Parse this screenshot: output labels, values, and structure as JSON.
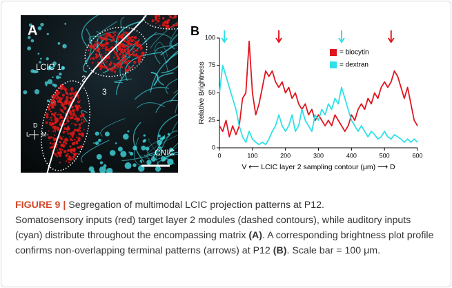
{
  "panel_a": {
    "label": "A",
    "texts": [
      "LCIC 1",
      "2",
      "3",
      "CNIC",
      "D",
      "L",
      "M"
    ]
  },
  "chart_data": {
    "type": "line",
    "panel_label": "B",
    "ylabel": "Relative Brightness",
    "xlabel": "V ⟵ LCIC layer 2 sampling contour (μm) ⟶ D",
    "x": [
      0,
      10,
      20,
      30,
      40,
      50,
      60,
      70,
      80,
      90,
      100,
      110,
      120,
      130,
      140,
      150,
      160,
      170,
      180,
      190,
      200,
      210,
      220,
      230,
      240,
      250,
      260,
      270,
      280,
      290,
      300,
      310,
      320,
      330,
      340,
      350,
      360,
      370,
      380,
      390,
      400,
      410,
      420,
      430,
      440,
      450,
      460,
      470,
      480,
      490,
      500,
      510,
      520,
      530,
      540,
      550,
      560,
      570,
      580,
      590,
      600
    ],
    "series": [
      {
        "name": "= biocytin",
        "color": "#e0161e",
        "values": [
          20,
          15,
          25,
          10,
          20,
          12,
          20,
          45,
          50,
          97,
          50,
          30,
          40,
          55,
          70,
          65,
          70,
          60,
          55,
          60,
          50,
          55,
          45,
          50,
          40,
          35,
          40,
          30,
          35,
          25,
          30,
          25,
          20,
          25,
          20,
          30,
          25,
          20,
          15,
          20,
          30,
          25,
          35,
          40,
          35,
          45,
          40,
          50,
          45,
          55,
          60,
          55,
          60,
          70,
          65,
          55,
          45,
          55,
          40,
          25,
          20
        ]
      },
      {
        "name": "= dextran",
        "color": "#2fe0e8",
        "values": [
          50,
          75,
          65,
          55,
          45,
          35,
          20,
          10,
          5,
          15,
          8,
          5,
          3,
          5,
          3,
          8,
          15,
          20,
          30,
          20,
          15,
          20,
          30,
          15,
          20,
          35,
          25,
          20,
          15,
          30,
          25,
          35,
          30,
          40,
          35,
          45,
          40,
          55,
          45,
          35,
          25,
          20,
          15,
          20,
          15,
          10,
          15,
          12,
          8,
          10,
          15,
          10,
          8,
          12,
          10,
          8,
          5,
          8,
          5,
          8,
          5
        ]
      }
    ],
    "xlim": [
      0,
      600
    ],
    "xticks": [
      0,
      100,
      200,
      300,
      400,
      500,
      600
    ],
    "ylim": [
      0,
      100
    ],
    "yticks": [
      0,
      25,
      50,
      75,
      100
    ],
    "arrows": [
      {
        "x": 15,
        "color": "#2fe0e8"
      },
      {
        "x": 180,
        "color": "#e0161e"
      },
      {
        "x": 370,
        "color": "#2fe0e8"
      },
      {
        "x": 520,
        "color": "#e0161e"
      }
    ]
  },
  "caption": {
    "label": "FIGURE 9 |",
    "title": "Segregation of multimodal LCIC projection patterns at P12.",
    "body": [
      {
        "text": "Somatosensory inputs (red) target layer 2 modules (dashed contours), while auditory inputs (cyan) distribute throughout the encompassing matrix ",
        "bold": false
      },
      {
        "text": "(A)",
        "bold": true
      },
      {
        "text": ". A corresponding brightness plot profile confirms non-overlapping terminal patterns (arrows) at P12 ",
        "bold": false
      },
      {
        "text": "(B)",
        "bold": true
      },
      {
        "text": ". Scale bar = 100 μm.",
        "bold": false
      }
    ]
  }
}
